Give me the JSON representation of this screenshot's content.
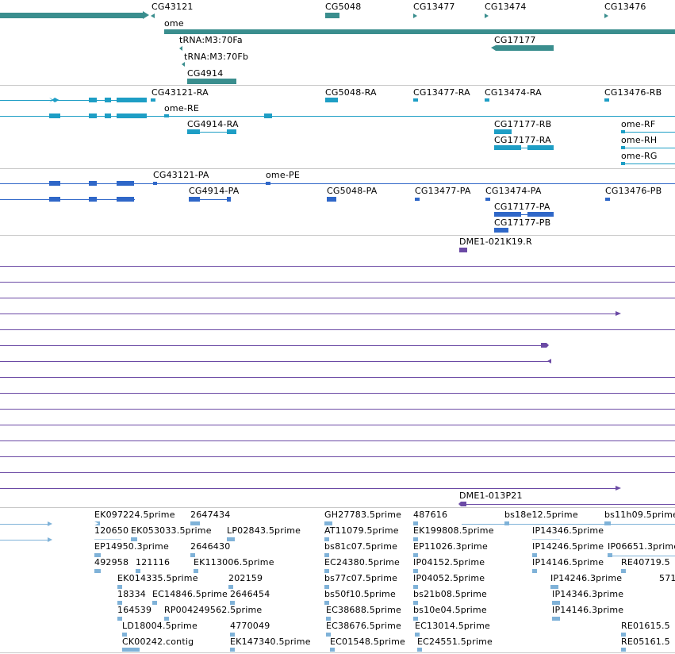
{
  "colors": {
    "gene": "#3a8e8e",
    "transcript": "#1e9ec5",
    "protein": "#2f67c8",
    "clone": "#6b4aa5",
    "est": "#7fb2d8",
    "separator": "#c8c8c8"
  },
  "tracks": {
    "genes": {
      "labels": [
        "CG43121",
        "CG5048",
        "CG13477",
        "CG13474",
        "CG13476",
        "ome",
        "tRNA:M3:70Fa",
        "tRNA:M3:70Fb",
        "CG17177",
        "CG4914"
      ]
    },
    "transcripts": {
      "labels": [
        "CG43121-RA",
        "CG5048-RA",
        "CG13477-RA",
        "CG13474-RA",
        "CG13476-RB",
        "ome-RE",
        "CG4914-RA",
        "CG17177-RB",
        "ome-RF",
        "CG17177-RA",
        "ome-RH",
        "ome-RG"
      ]
    },
    "proteins": {
      "labels": [
        "CG43121-PA",
        "ome-PE",
        "CG4914-PA",
        "CG5048-PA",
        "CG13477-PA",
        "CG13474-PA",
        "CG13476-PB",
        "CG17177-PA",
        "CG17177-PB"
      ]
    },
    "clones": {
      "labels": [
        "DME1-021K19.R",
        "DME1-013P21"
      ]
    },
    "ests": {
      "labels": [
        "EK097224.5prime",
        "2647434",
        "GH27783.5prime",
        "487616",
        "bs18e12.5prime",
        "bs11h09.5prime",
        "120650",
        "EK053033.5prime",
        "LP02843.5prime",
        "AT11079.5prime",
        "EK199808.5prime",
        "IP14346.5prime",
        "EP14950.3prime",
        "2646430",
        "bs81c07.5prime",
        "EP11026.3prime",
        "IP14246.5prime",
        "IP06651.3prime",
        "492958",
        "121116",
        "EK113006.5prime",
        "EC24380.5prime",
        "IP04152.5prime",
        "IP14146.5prime",
        "RE40719.5",
        "EK014335.5prime",
        "202159",
        "bs77c07.5prime",
        "IP04052.5prime",
        "IP14246.3prime",
        "571",
        "18334",
        "EC14846.5prime",
        "2646454",
        "bs50f10.5prime",
        "bs21b08.5prime",
        "IP14346.3prime",
        "164539",
        "RP004249562.5prime",
        "EC38688.5prime",
        "bs10e04.5prime",
        "IP14146.3prime",
        "LD18004.5prime",
        "4770049",
        "EC38676.5prime",
        "EC13014.5prime",
        "RE01615.5",
        "CK00242.contig",
        "EK147340.5prime",
        "EC01548.5prime",
        "EC24551.5prime",
        "RE05161.5"
      ]
    }
  }
}
